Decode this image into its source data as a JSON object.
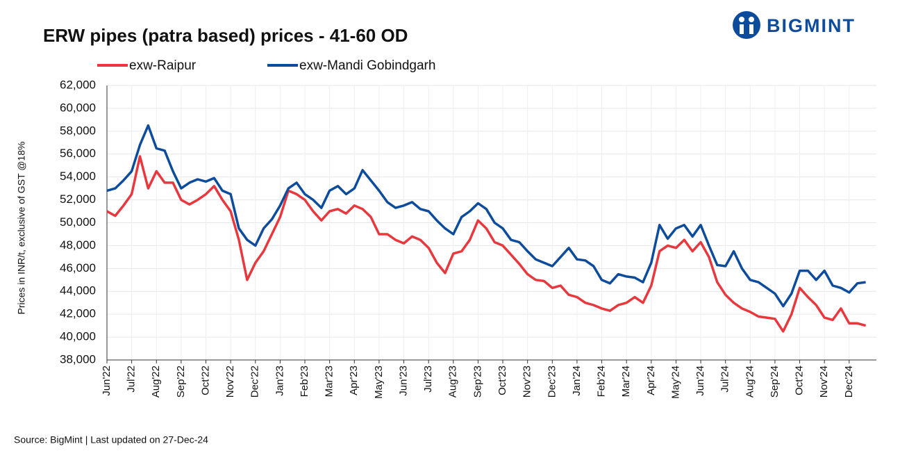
{
  "logo": "BIGMINT",
  "source": "Source: BigMint  | Last updated on 27-Dec-24",
  "chart_data": {
    "type": "line",
    "title": "ERW pipes (patra based) prices - 41-60 OD",
    "y_label": "Prices in INR/t, exclusive of GST @18%",
    "categories": [
      "Jun'22",
      null,
      null,
      "Jul'22",
      null,
      null,
      "Aug'22",
      null,
      null,
      "Sep'22",
      null,
      null,
      "Oct'22",
      null,
      null,
      "Nov'22",
      null,
      null,
      "Dec'22",
      null,
      null,
      "Jan'23",
      null,
      null,
      "Feb'23",
      null,
      null,
      "Mar'23",
      null,
      null,
      "Apr'23",
      null,
      null,
      "May'23",
      null,
      null,
      "Jun'23",
      null,
      null,
      "Jul'23",
      null,
      null,
      "Aug'23",
      null,
      null,
      "Sep'23",
      null,
      null,
      "Oct'23",
      null,
      null,
      "Nov'23",
      null,
      null,
      "Dec'23",
      null,
      null,
      "Jan'24",
      null,
      null,
      "Feb'24",
      null,
      null,
      "Mar'24",
      null,
      null,
      "Apr'24",
      null,
      null,
      "May'24",
      null,
      null,
      "Jun'24",
      null,
      null,
      "Jul'24",
      null,
      null,
      "Aug'24",
      null,
      null,
      "Sep'24",
      null,
      null,
      "Oct'24",
      null,
      null,
      "Nov'24",
      null,
      null,
      "Dec'24",
      null,
      null
    ],
    "series": [
      {
        "name": "exw-Raipur",
        "color": "#e8383d",
        "values": [
          51000,
          50600,
          51500,
          52500,
          55800,
          53000,
          54500,
          53500,
          53500,
          52000,
          51600,
          52000,
          52500,
          53200,
          52000,
          51000,
          48500,
          45000,
          46500,
          47500,
          49000,
          50500,
          52800,
          52500,
          52000,
          51000,
          50200,
          51000,
          51200,
          50800,
          51500,
          51200,
          50500,
          49000,
          49000,
          48500,
          48200,
          48800,
          48500,
          47800,
          46500,
          45600,
          47300,
          47500,
          48500,
          50200,
          49500,
          48300,
          48000,
          47200,
          46400,
          45500,
          45000,
          44900,
          44300,
          44500,
          43700,
          43500,
          43000,
          42800,
          42500,
          42300,
          42800,
          43000,
          43500,
          43000,
          44500,
          47500,
          48000,
          47800,
          48500,
          47500,
          48300,
          47000,
          44800,
          43700,
          43000,
          42500,
          42200,
          41800,
          41700,
          41600,
          40500,
          42000,
          44300,
          43500,
          42800,
          41700,
          41500,
          42500,
          41200,
          41200,
          41000
        ]
      },
      {
        "name": "exw-Mandi Gobindgarh",
        "color": "#0d4c9c",
        "values": [
          52800,
          53000,
          53700,
          54500,
          56800,
          58500,
          56500,
          56300,
          54500,
          53000,
          53500,
          53800,
          53600,
          53900,
          52800,
          52500,
          49500,
          48500,
          48000,
          49500,
          50300,
          51500,
          53000,
          53500,
          52500,
          52000,
          51300,
          52800,
          53200,
          52500,
          53000,
          54600,
          53700,
          52800,
          51800,
          51300,
          51500,
          51800,
          51200,
          51000,
          50200,
          49500,
          49000,
          50500,
          51000,
          51700,
          51200,
          50000,
          49500,
          48500,
          48300,
          47500,
          46800,
          46500,
          46200,
          47000,
          47800,
          46800,
          46700,
          46200,
          45000,
          44700,
          45500,
          45300,
          45200,
          44800,
          46500,
          49800,
          48600,
          49500,
          49800,
          48800,
          49800,
          48000,
          46300,
          46200,
          47500,
          46000,
          45000,
          44800,
          44300,
          43800,
          42700,
          43800,
          45800,
          45800,
          45000,
          45800,
          44500,
          44300,
          43900,
          44700,
          44800
        ]
      }
    ],
    "ylim": [
      38000,
      62000
    ],
    "yticks": [
      {
        "value": 38000,
        "label": "38,000"
      },
      {
        "value": 40000,
        "label": "40,000"
      },
      {
        "value": 42000,
        "label": "42,000"
      },
      {
        "value": 44000,
        "label": "44,000"
      },
      {
        "value": 46000,
        "label": "46,000"
      },
      {
        "value": 48000,
        "label": "48,000"
      },
      {
        "value": 50000,
        "label": "50,000"
      },
      {
        "value": 52000,
        "label": "52,000"
      },
      {
        "value": 54000,
        "label": "54,000"
      },
      {
        "value": 56000,
        "label": "56,000"
      },
      {
        "value": 58000,
        "label": "58,000"
      },
      {
        "value": 60000,
        "label": "60,000"
      },
      {
        "value": 62000,
        "label": "62,000"
      }
    ],
    "grid": true
  }
}
